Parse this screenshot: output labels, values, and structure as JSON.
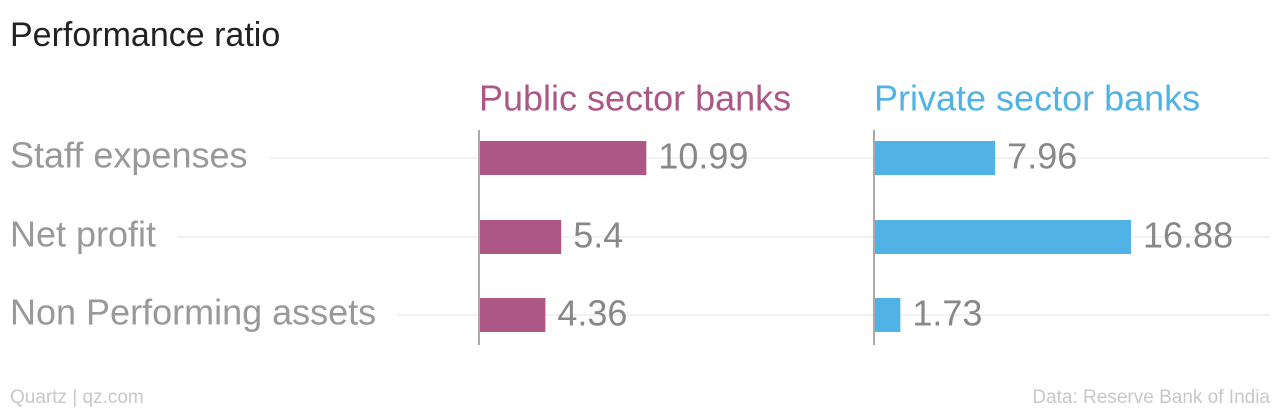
{
  "chart_data": {
    "type": "bar",
    "title": "Performance ratio",
    "categories": [
      "Staff expenses",
      "Net profit",
      "Non Performing assets"
    ],
    "series": [
      {
        "name": "Public sector banks",
        "color": "#ad5787",
        "values": [
          10.99,
          5.4,
          4.36
        ]
      },
      {
        "name": "Private sector banks",
        "color": "#51b2e5",
        "values": [
          7.96,
          16.88,
          1.73
        ]
      }
    ],
    "credit": "Quartz | qz.com",
    "source": "Data: Reserve Bank of India"
  }
}
